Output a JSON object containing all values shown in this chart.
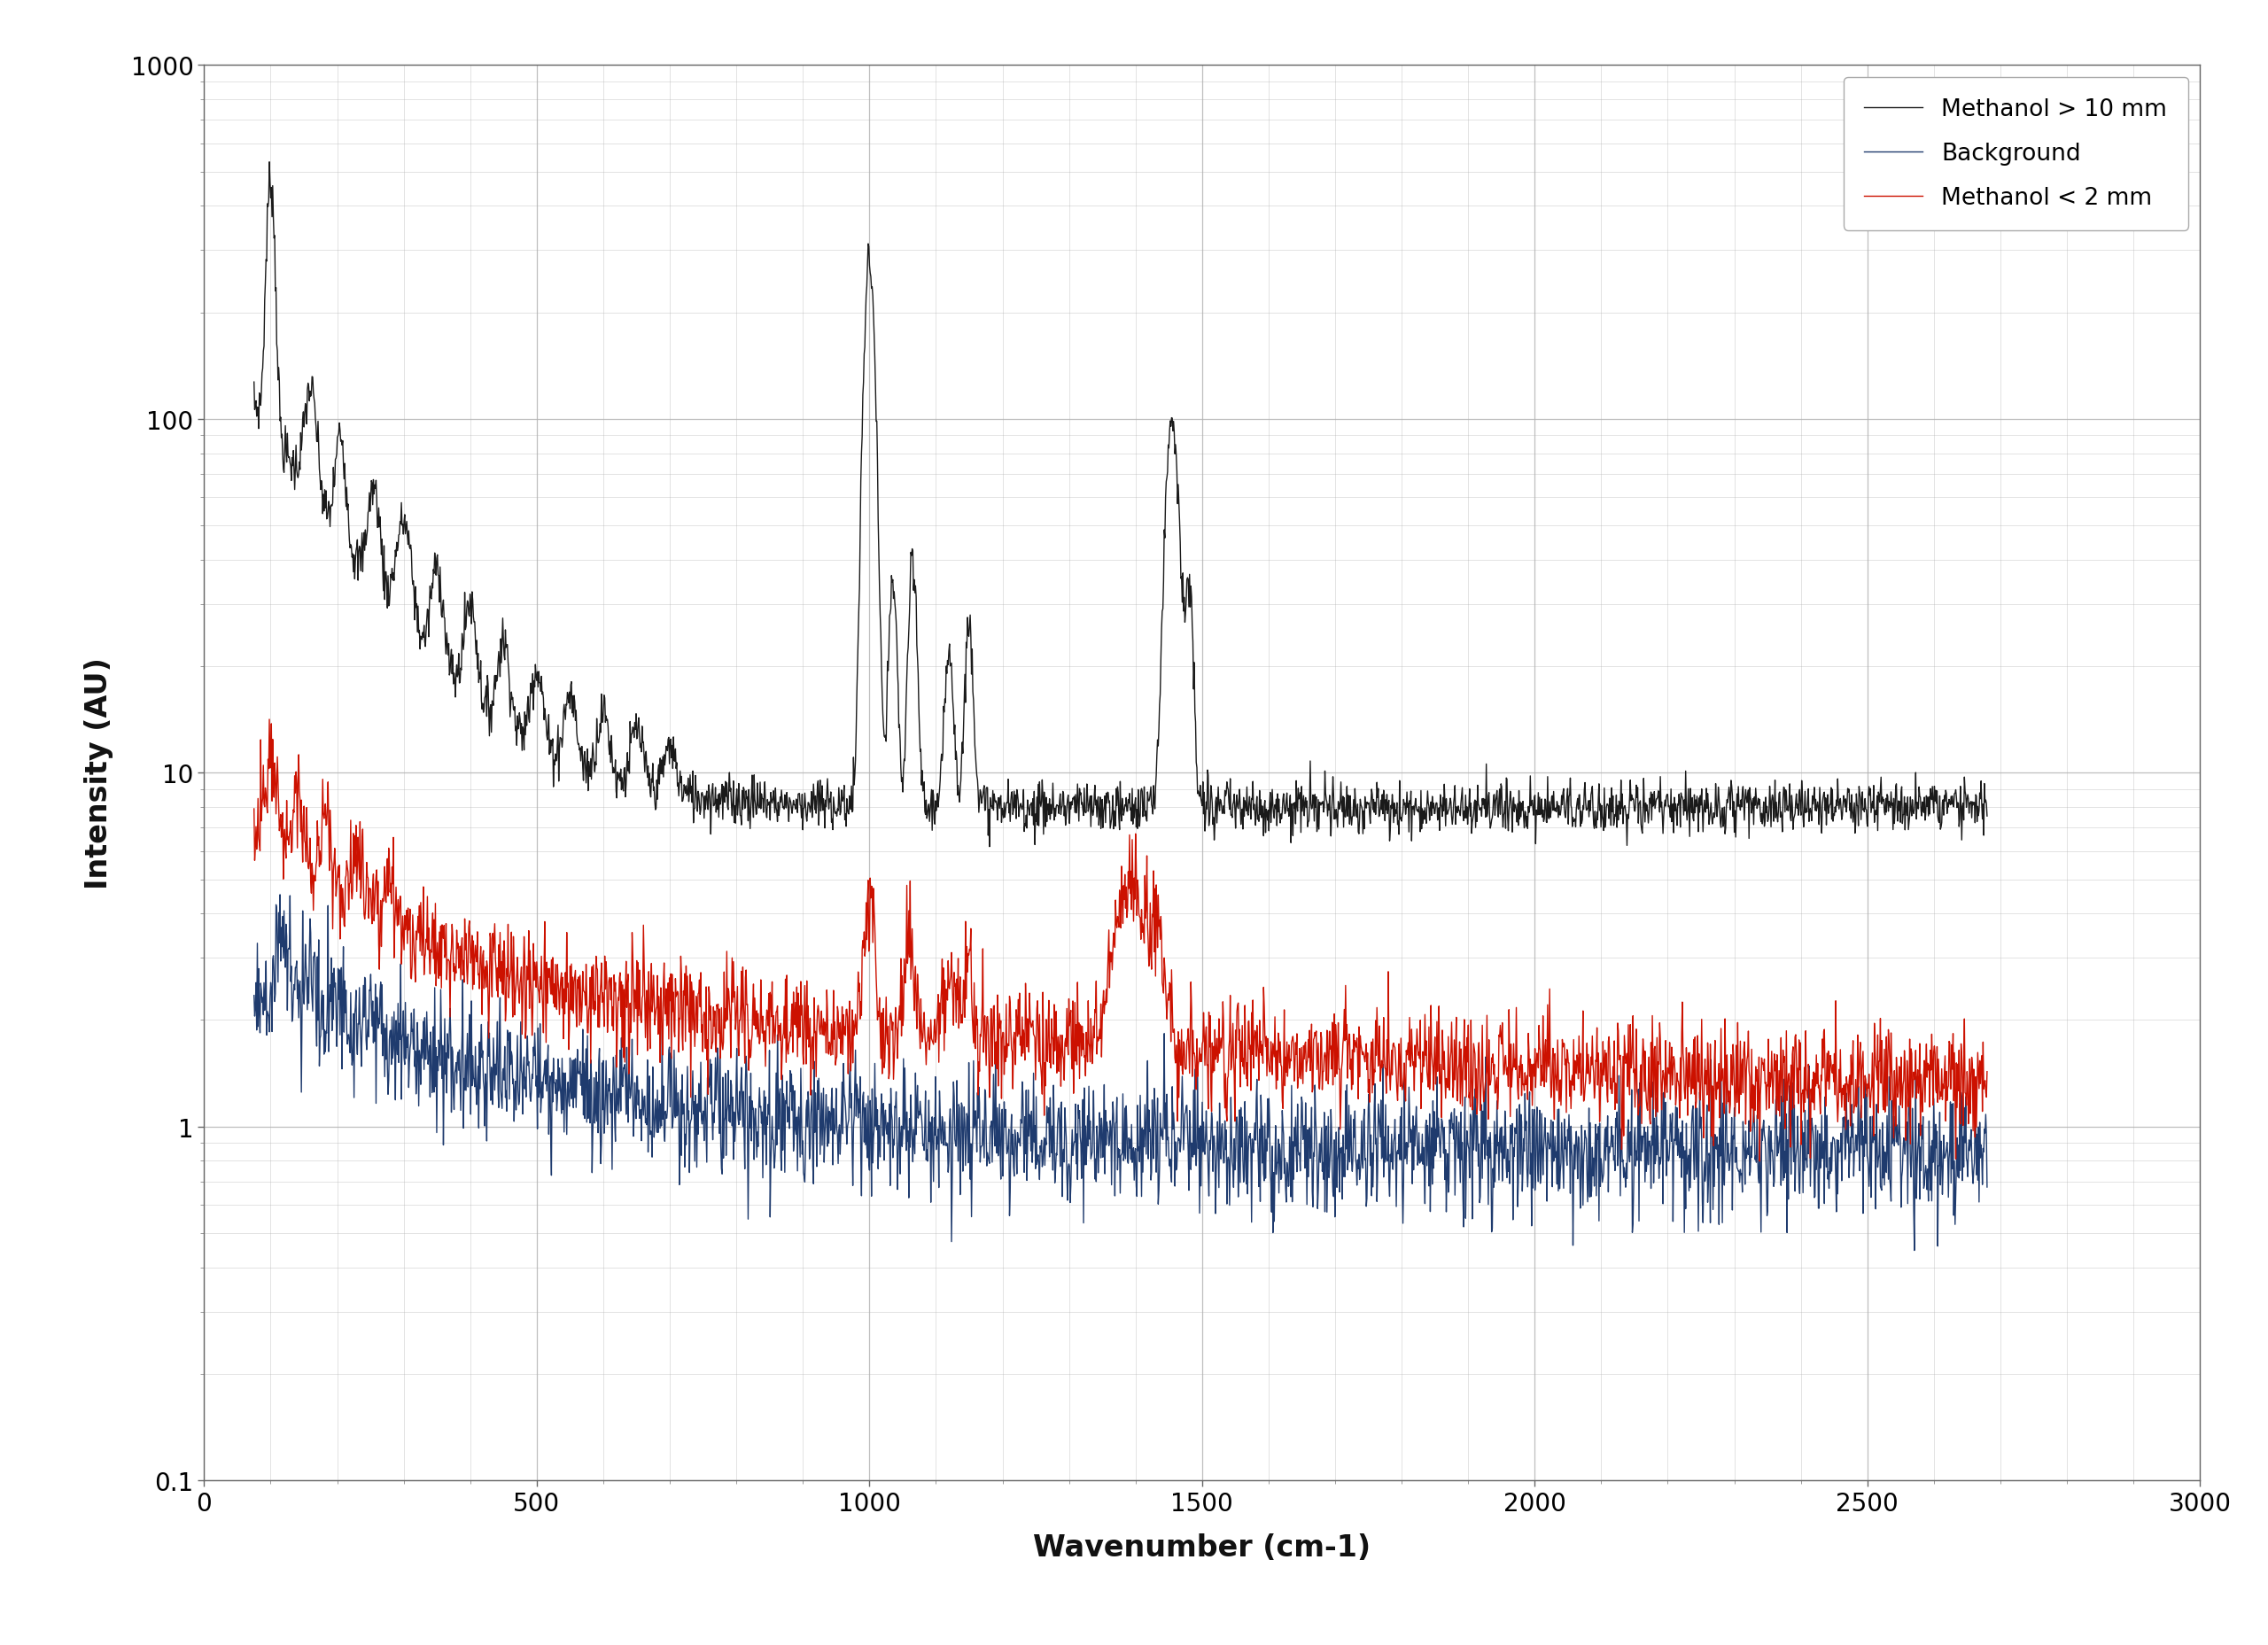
{
  "title": "",
  "xlabel": "Wavenumber (cm-1)",
  "ylabel": "Intensity (AU)",
  "xlim": [
    0,
    3000
  ],
  "ylim_log": [
    0.1,
    1000
  ],
  "xticks": [
    0,
    500,
    1000,
    1500,
    2000,
    2500,
    3000
  ],
  "yticks": [
    0.1,
    1,
    10,
    100,
    1000
  ],
  "legend": [
    {
      "label": "Methanol > 10 mm",
      "color": "#1a1a1a"
    },
    {
      "label": "Background",
      "color": "#1f3b6e"
    },
    {
      "label": "Methanol < 2 mm",
      "color": "#cc1100"
    }
  ],
  "bg_color": "#ffffff",
  "grid_color": "#b0b0b0",
  "line_width": 1.0,
  "xlabel_fontsize": 24,
  "ylabel_fontsize": 24,
  "tick_fontsize": 20,
  "legend_fontsize": 19
}
